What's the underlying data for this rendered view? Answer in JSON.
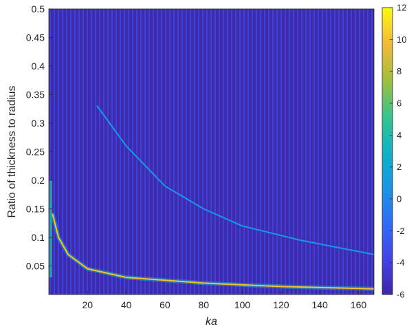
{
  "chart_data": {
    "type": "heatmap",
    "title": "",
    "xlabel": "ka",
    "ylabel": "Ratio of thickness to radius",
    "xlim": [
      0,
      168
    ],
    "ylim": [
      0,
      0.5
    ],
    "x_ticks": [
      20,
      40,
      60,
      80,
      100,
      120,
      140,
      160
    ],
    "y_ticks": [
      0.05,
      0.1,
      0.15,
      0.2,
      0.25,
      0.3,
      0.35,
      0.4,
      0.45,
      0.5
    ],
    "x_tick_labels": [
      "20",
      "40",
      "60",
      "80",
      "100",
      "120",
      "140",
      "160"
    ],
    "y_tick_labels": [
      "0.05",
      "0.1",
      "0.15",
      "0.2",
      "0.25",
      "0.3",
      "0.35",
      "0.4",
      "0.45",
      "0.5"
    ],
    "colorbar": {
      "range": [
        -6,
        12
      ],
      "ticks": [
        -6,
        -4,
        -2,
        0,
        2,
        4,
        6,
        8,
        10,
        12
      ],
      "tick_labels": [
        "-6",
        "-4",
        "-2",
        "0",
        "2",
        "4",
        "6",
        "8",
        "10",
        "12"
      ],
      "colormap": "parula"
    },
    "background_level": -4.5,
    "features": [
      {
        "kind": "ridge",
        "peak_value": 10,
        "points": [
          [
            2,
            0.14
          ],
          [
            5,
            0.1
          ],
          [
            10,
            0.07
          ],
          [
            20,
            0.045
          ],
          [
            40,
            0.03
          ],
          [
            80,
            0.02
          ],
          [
            120,
            0.014
          ],
          [
            168,
            0.01
          ]
        ]
      },
      {
        "kind": "ridge",
        "peak_value": 1,
        "points": [
          [
            25,
            0.33
          ],
          [
            40,
            0.26
          ],
          [
            60,
            0.19
          ],
          [
            80,
            0.15
          ],
          [
            100,
            0.12
          ],
          [
            130,
            0.095
          ],
          [
            168,
            0.07
          ]
        ]
      },
      {
        "kind": "band",
        "peak_value": 4,
        "points": [
          [
            1,
            0.03
          ],
          [
            1,
            0.2
          ]
        ]
      }
    ]
  }
}
